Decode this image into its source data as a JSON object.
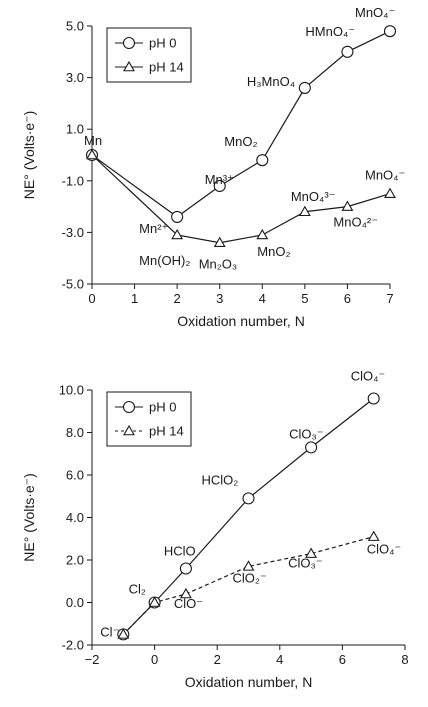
{
  "chart_data": [
    {
      "type": "line",
      "xlabel": "Oxidation number, N",
      "ylabel": "NE° (Volts·e⁻)",
      "xlim": [
        0,
        7
      ],
      "ylim": [
        -5.0,
        5.0
      ],
      "xticks": [
        "0",
        "1",
        "2",
        "3",
        "4",
        "5",
        "6",
        "7"
      ],
      "yticks": [
        "-5.0",
        "-3.0",
        "-1.0",
        "1.0",
        "3.0",
        "5.0"
      ],
      "grid": false,
      "legend_position": "top-left",
      "series": [
        {
          "name": "pH 0",
          "marker": "circle",
          "style": "solid",
          "x": [
            0,
            2,
            3,
            4,
            5,
            6,
            7
          ],
          "y": [
            0,
            -2.4,
            -1.2,
            -0.2,
            2.6,
            4.0,
            4.8
          ],
          "labels": [
            "Mn",
            "Mn²⁺",
            "Mn³⁺",
            "MnO₂",
            "H₃MnO₄",
            "HMnO₄⁻",
            "MnO₄⁻"
          ]
        },
        {
          "name": "pH 14",
          "marker": "triangle",
          "style": "solid",
          "x": [
            0,
            2,
            3,
            4,
            5,
            6,
            7
          ],
          "y": [
            0,
            -3.1,
            -3.4,
            -3.1,
            -2.2,
            -2.0,
            -1.5
          ],
          "labels": [
            "",
            "Mn(OH)₂",
            "Mn₂O₃",
            "MnO₂",
            "MnO₄³⁻",
            "MnO₄²⁻",
            "MnO₄⁻"
          ]
        }
      ]
    },
    {
      "type": "line",
      "xlabel": "Oxidation number, N",
      "ylabel": "NE° (Volts·e⁻)",
      "xlim": [
        -2,
        8
      ],
      "ylim": [
        -2.0,
        10.0
      ],
      "xticks": [
        "−2",
        "0",
        "2",
        "4",
        "6",
        "8"
      ],
      "yticks": [
        "-2.0",
        "0.0",
        "2.0",
        "4.0",
        "6.0",
        "8.0",
        "10.0"
      ],
      "grid": false,
      "legend_position": "top-left",
      "series": [
        {
          "name": "pH 0",
          "marker": "circle",
          "style": "solid",
          "x": [
            -1,
            0,
            1,
            3,
            5,
            7
          ],
          "y": [
            -1.5,
            0,
            1.6,
            4.9,
            7.3,
            9.6
          ],
          "labels": [
            "Cl⁻",
            "Cl₂",
            "HClO",
            "HClO₂",
            "ClO₃⁻",
            "ClO₄⁻"
          ]
        },
        {
          "name": "pH 14",
          "marker": "triangle",
          "style": "dashed",
          "x": [
            -1,
            0,
            1,
            3,
            5,
            7
          ],
          "y": [
            -1.5,
            0,
            0.4,
            1.7,
            2.3,
            3.1
          ],
          "labels": [
            "",
            "",
            "ClO⁻",
            "ClO₂⁻",
            "ClO₃⁻",
            "ClO₄⁻"
          ]
        }
      ]
    }
  ]
}
